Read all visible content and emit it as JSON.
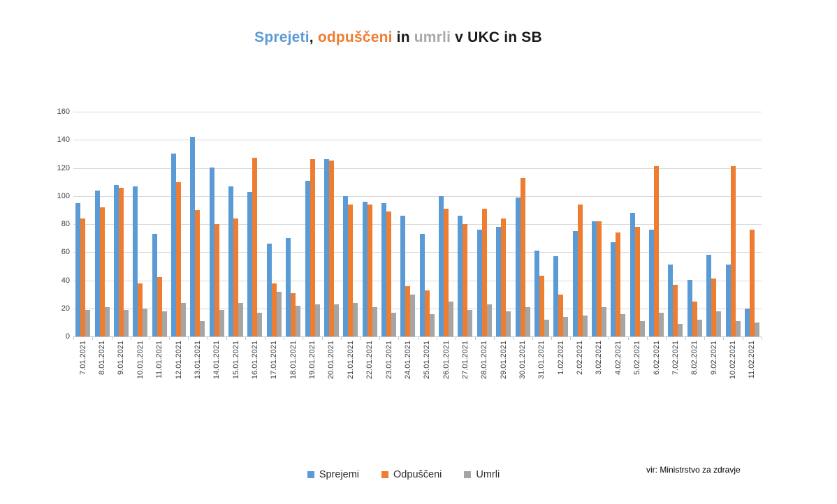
{
  "title": {
    "segments": [
      {
        "text": "Sprejeti",
        "color": "#5B9BD5"
      },
      {
        "text": ", ",
        "color": "#1a1a1a"
      },
      {
        "text": "odpuščeni",
        "color": "#ED7D31"
      },
      {
        "text": " in ",
        "color": "#1a1a1a"
      },
      {
        "text": "umrli",
        "color": "#A9A9A9"
      },
      {
        "text": " v UKC in SB",
        "color": "#1a1a1a"
      }
    ]
  },
  "source_note": "vir: Ministrstvo za zdravje",
  "chart_data": {
    "type": "bar",
    "title": "Sprejeti, odpuščeni in umrli v UKC in SB",
    "xlabel": "",
    "ylabel": "",
    "ylim": [
      0,
      160
    ],
    "yticks": [
      0,
      20,
      40,
      60,
      80,
      100,
      120,
      140,
      160
    ],
    "grid": true,
    "legend_position": "bottom",
    "categories": [
      "7.01.2021",
      "8.01.2021",
      "9.01.2021",
      "10.01.2021",
      "11.01.2021",
      "12.01.2021",
      "13.01.2021",
      "14.01.2021",
      "15.01.2021",
      "16.01.2021",
      "17.01.2021",
      "18.01.2021",
      "19.01.2021",
      "20.01.2021",
      "21.01.2021",
      "22.01.2021",
      "23.01.2021",
      "24.01.2021",
      "25.01.2021",
      "26.01.2021",
      "27.01.2021",
      "28.01.2021",
      "29.01.2021",
      "30.01.2021",
      "31.01.2021",
      "1.02.2021",
      "2.02.2021",
      "3.02.2021",
      "4.02.2021",
      "5.02.2021",
      "6.02.2021",
      "7.02.2021",
      "8.02.2021",
      "9.02.2021",
      "10.02.2021",
      "11.02.2021"
    ],
    "series": [
      {
        "name": "Sprejemi",
        "color": "#5B9BD5",
        "values": [
          95,
          104,
          108,
          107,
          73,
          130,
          142,
          120,
          107,
          103,
          66,
          70,
          111,
          126,
          100,
          96,
          95,
          86,
          73,
          100,
          86,
          76,
          78,
          99,
          61,
          57,
          75,
          82,
          67,
          88,
          76,
          51,
          40,
          58,
          51,
          20
        ]
      },
      {
        "name": "Odpuščeni",
        "color": "#ED7D31",
        "values": [
          84,
          92,
          106,
          38,
          42,
          110,
          90,
          80,
          84,
          127,
          38,
          31,
          126,
          125,
          94,
          94,
          89,
          36,
          33,
          91,
          80,
          91,
          84,
          113,
          43,
          30,
          94,
          82,
          74,
          78,
          121,
          37,
          25,
          41,
          121,
          76
        ]
      },
      {
        "name": "Umrli",
        "color": "#A5A5A5",
        "values": [
          19,
          21,
          19,
          20,
          18,
          24,
          11,
          19,
          24,
          17,
          32,
          22,
          23,
          23,
          24,
          21,
          17,
          30,
          16,
          25,
          19,
          23,
          18,
          21,
          12,
          14,
          15,
          21,
          16,
          11,
          17,
          9,
          12,
          18,
          11,
          10
        ]
      }
    ]
  }
}
